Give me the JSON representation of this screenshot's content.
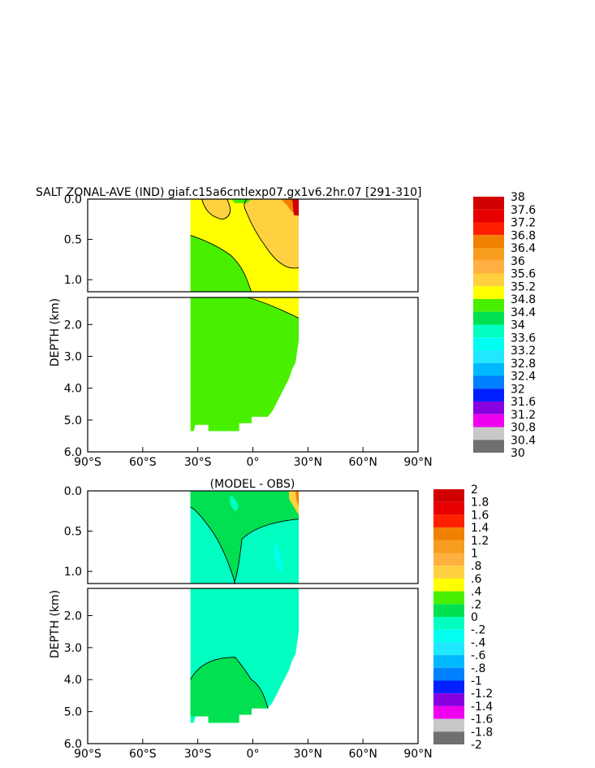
{
  "chart_data": [
    {
      "type": "heatmap",
      "title": "SALT ZONAL-AVE (IND) giaf.c15a6cntlexp07.gx1v6.2hr.07 [291-310]",
      "ylabel": "DEPTH (km)",
      "xlim": [
        -90,
        90
      ],
      "ylim": [
        6.0,
        0.0
      ],
      "x_ticks": [
        "90°S",
        "60°S",
        "30°S",
        "0°",
        "30°N",
        "60°N",
        "90°N"
      ],
      "y_ticks": [
        "0.0",
        "0.5",
        "1.0",
        "2.0",
        "3.0",
        "4.0",
        "5.0",
        "6.0"
      ],
      "legend": {
        "position": "right",
        "labels": [
          "38",
          "37.6",
          "37.2",
          "36.8",
          "36.4",
          "36",
          "35.6",
          "35.2",
          "34.8",
          "34.4",
          "34",
          "33.6",
          "33.2",
          "32.8",
          "32.4",
          "32",
          "31.6",
          "31.2",
          "30.8",
          "30.4",
          "30"
        ],
        "colors": [
          "#d00000",
          "#e80000",
          "#ff2000",
          "#f08000",
          "#f89c20",
          "#ffb040",
          "#ffd040",
          "#ffff00",
          "#48f000",
          "#00e050",
          "#00ffc0",
          "#00fff0",
          "#20e8ff",
          "#00b8ff",
          "#0080ff",
          "#0020ff",
          "#8800e0",
          "#ee00ee",
          "#c8c8c8",
          "#707070"
        ]
      },
      "fields": {
        "data_extent_lat": [
          -34,
          25
        ],
        "upper_field": "34.8–35.2 (yellow) in upper 1 km, saltier >36 near 25°N surface, fresher 34.4–34.8 (green) below ~1 km",
        "deep_field": "34.4–34.8 throughout deep ocean"
      }
    },
    {
      "type": "heatmap",
      "title": "(MODEL - OBS)",
      "ylabel": "DEPTH (km)",
      "xlim": [
        -90,
        90
      ],
      "ylim": [
        6.0,
        0.0
      ],
      "x_ticks": [
        "90°S",
        "60°S",
        "30°S",
        "0°",
        "30°N",
        "60°N",
        "90°N"
      ],
      "y_ticks": [
        "0.0",
        "0.5",
        "1.0",
        "2.0",
        "3.0",
        "4.0",
        "5.0",
        "6.0"
      ],
      "legend": {
        "position": "right",
        "labels": [
          "2",
          "1.8",
          "1.6",
          "1.4",
          "1.2",
          "1",
          ".8",
          ".6",
          ".4",
          ".2",
          "0",
          "-.2",
          "-.4",
          "-.6",
          "-.8",
          "-1",
          "-1.2",
          "-1.4",
          "-1.6",
          "-1.8",
          "-2"
        ],
        "colors": [
          "#d00000",
          "#e80000",
          "#ff2000",
          "#f08000",
          "#f89c20",
          "#ffb040",
          "#ffd040",
          "#ffff00",
          "#48f000",
          "#00e050",
          "#00ffc0",
          "#00fff0",
          "#20e8ff",
          "#00b8ff",
          "#0080ff",
          "#0020ff",
          "#8800e0",
          "#ee00ee",
          "#c8c8c8",
          "#707070"
        ]
      },
      "fields": {
        "data_extent_lat": [
          -34,
          25
        ],
        "upper_field": "0–0.2 (green) in upper ~0.6 km, 0 to -0.2 (cyan) below, positive >0.4 near 25°N surface",
        "deep_field": "0 to -0.2 mostly, 0–0.2 near bottom 3.5–5.3 km"
      }
    }
  ]
}
